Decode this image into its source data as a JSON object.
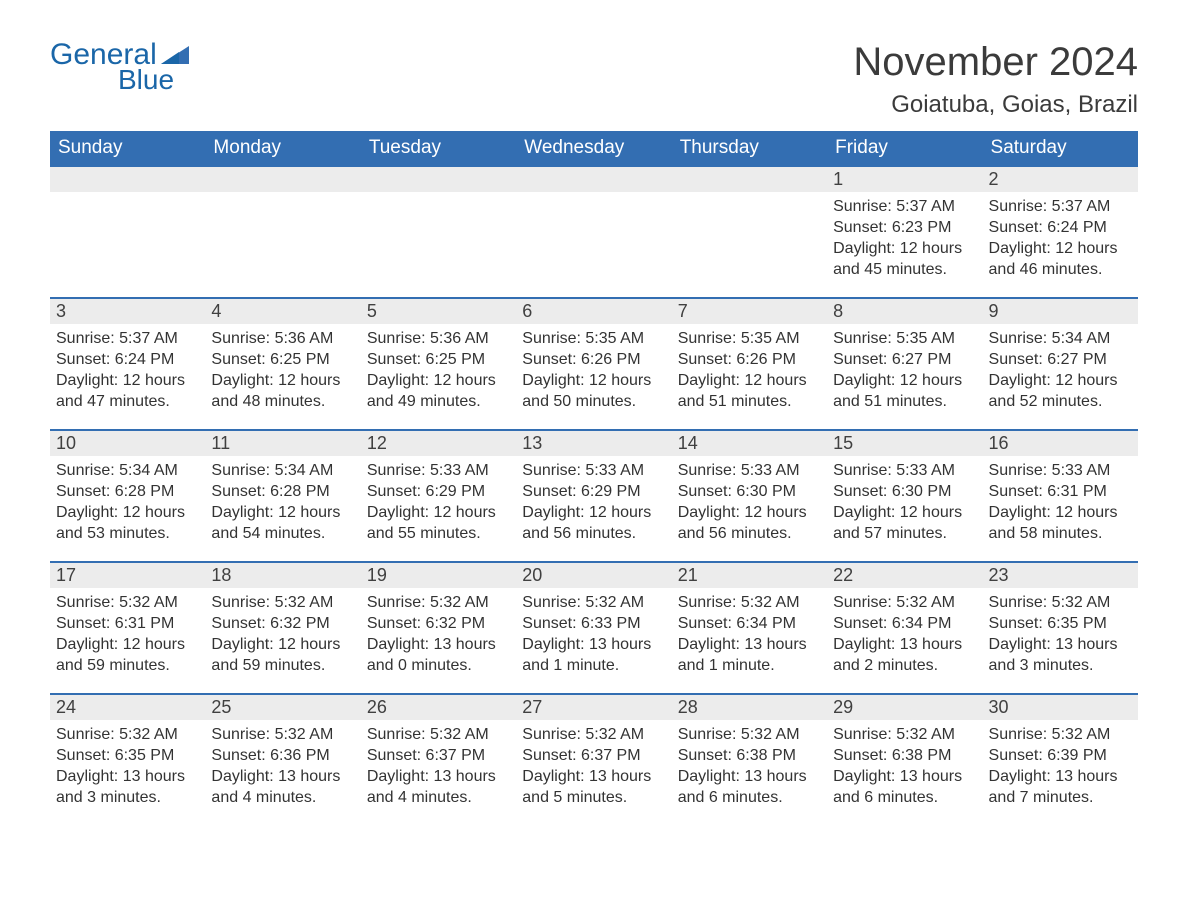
{
  "branding": {
    "logo_word1": "General",
    "logo_word2": "Blue",
    "logo_color": "#1a66a8",
    "logo_shape_color": "#336eb2"
  },
  "header": {
    "title": "November 2024",
    "location": "Goiatuba, Goias, Brazil",
    "title_color": "#3b3b3b",
    "title_fontsize": 40,
    "location_fontsize": 24
  },
  "calendar": {
    "type": "month-grid-calendar",
    "header_bg": "#336eb2",
    "header_text_color": "#ffffff",
    "row_separator_color": "#336eb2",
    "daynum_bg": "#ececec",
    "body_bg": "#ffffff",
    "text_color": "#333333",
    "font_family": "Arial",
    "day_headers": [
      "Sunday",
      "Monday",
      "Tuesday",
      "Wednesday",
      "Thursday",
      "Friday",
      "Saturday"
    ],
    "weeks": [
      [
        null,
        null,
        null,
        null,
        null,
        {
          "num": "1",
          "sunrise": "Sunrise: 5:37 AM",
          "sunset": "Sunset: 6:23 PM",
          "daylight": "Daylight: 12 hours and 45 minutes."
        },
        {
          "num": "2",
          "sunrise": "Sunrise: 5:37 AM",
          "sunset": "Sunset: 6:24 PM",
          "daylight": "Daylight: 12 hours and 46 minutes."
        }
      ],
      [
        {
          "num": "3",
          "sunrise": "Sunrise: 5:37 AM",
          "sunset": "Sunset: 6:24 PM",
          "daylight": "Daylight: 12 hours and 47 minutes."
        },
        {
          "num": "4",
          "sunrise": "Sunrise: 5:36 AM",
          "sunset": "Sunset: 6:25 PM",
          "daylight": "Daylight: 12 hours and 48 minutes."
        },
        {
          "num": "5",
          "sunrise": "Sunrise: 5:36 AM",
          "sunset": "Sunset: 6:25 PM",
          "daylight": "Daylight: 12 hours and 49 minutes."
        },
        {
          "num": "6",
          "sunrise": "Sunrise: 5:35 AM",
          "sunset": "Sunset: 6:26 PM",
          "daylight": "Daylight: 12 hours and 50 minutes."
        },
        {
          "num": "7",
          "sunrise": "Sunrise: 5:35 AM",
          "sunset": "Sunset: 6:26 PM",
          "daylight": "Daylight: 12 hours and 51 minutes."
        },
        {
          "num": "8",
          "sunrise": "Sunrise: 5:35 AM",
          "sunset": "Sunset: 6:27 PM",
          "daylight": "Daylight: 12 hours and 51 minutes."
        },
        {
          "num": "9",
          "sunrise": "Sunrise: 5:34 AM",
          "sunset": "Sunset: 6:27 PM",
          "daylight": "Daylight: 12 hours and 52 minutes."
        }
      ],
      [
        {
          "num": "10",
          "sunrise": "Sunrise: 5:34 AM",
          "sunset": "Sunset: 6:28 PM",
          "daylight": "Daylight: 12 hours and 53 minutes."
        },
        {
          "num": "11",
          "sunrise": "Sunrise: 5:34 AM",
          "sunset": "Sunset: 6:28 PM",
          "daylight": "Daylight: 12 hours and 54 minutes."
        },
        {
          "num": "12",
          "sunrise": "Sunrise: 5:33 AM",
          "sunset": "Sunset: 6:29 PM",
          "daylight": "Daylight: 12 hours and 55 minutes."
        },
        {
          "num": "13",
          "sunrise": "Sunrise: 5:33 AM",
          "sunset": "Sunset: 6:29 PM",
          "daylight": "Daylight: 12 hours and 56 minutes."
        },
        {
          "num": "14",
          "sunrise": "Sunrise: 5:33 AM",
          "sunset": "Sunset: 6:30 PM",
          "daylight": "Daylight: 12 hours and 56 minutes."
        },
        {
          "num": "15",
          "sunrise": "Sunrise: 5:33 AM",
          "sunset": "Sunset: 6:30 PM",
          "daylight": "Daylight: 12 hours and 57 minutes."
        },
        {
          "num": "16",
          "sunrise": "Sunrise: 5:33 AM",
          "sunset": "Sunset: 6:31 PM",
          "daylight": "Daylight: 12 hours and 58 minutes."
        }
      ],
      [
        {
          "num": "17",
          "sunrise": "Sunrise: 5:32 AM",
          "sunset": "Sunset: 6:31 PM",
          "daylight": "Daylight: 12 hours and 59 minutes."
        },
        {
          "num": "18",
          "sunrise": "Sunrise: 5:32 AM",
          "sunset": "Sunset: 6:32 PM",
          "daylight": "Daylight: 12 hours and 59 minutes."
        },
        {
          "num": "19",
          "sunrise": "Sunrise: 5:32 AM",
          "sunset": "Sunset: 6:32 PM",
          "daylight": "Daylight: 13 hours and 0 minutes."
        },
        {
          "num": "20",
          "sunrise": "Sunrise: 5:32 AM",
          "sunset": "Sunset: 6:33 PM",
          "daylight": "Daylight: 13 hours and 1 minute."
        },
        {
          "num": "21",
          "sunrise": "Sunrise: 5:32 AM",
          "sunset": "Sunset: 6:34 PM",
          "daylight": "Daylight: 13 hours and 1 minute."
        },
        {
          "num": "22",
          "sunrise": "Sunrise: 5:32 AM",
          "sunset": "Sunset: 6:34 PM",
          "daylight": "Daylight: 13 hours and 2 minutes."
        },
        {
          "num": "23",
          "sunrise": "Sunrise: 5:32 AM",
          "sunset": "Sunset: 6:35 PM",
          "daylight": "Daylight: 13 hours and 3 minutes."
        }
      ],
      [
        {
          "num": "24",
          "sunrise": "Sunrise: 5:32 AM",
          "sunset": "Sunset: 6:35 PM",
          "daylight": "Daylight: 13 hours and 3 minutes."
        },
        {
          "num": "25",
          "sunrise": "Sunrise: 5:32 AM",
          "sunset": "Sunset: 6:36 PM",
          "daylight": "Daylight: 13 hours and 4 minutes."
        },
        {
          "num": "26",
          "sunrise": "Sunrise: 5:32 AM",
          "sunset": "Sunset: 6:37 PM",
          "daylight": "Daylight: 13 hours and 4 minutes."
        },
        {
          "num": "27",
          "sunrise": "Sunrise: 5:32 AM",
          "sunset": "Sunset: 6:37 PM",
          "daylight": "Daylight: 13 hours and 5 minutes."
        },
        {
          "num": "28",
          "sunrise": "Sunrise: 5:32 AM",
          "sunset": "Sunset: 6:38 PM",
          "daylight": "Daylight: 13 hours and 6 minutes."
        },
        {
          "num": "29",
          "sunrise": "Sunrise: 5:32 AM",
          "sunset": "Sunset: 6:38 PM",
          "daylight": "Daylight: 13 hours and 6 minutes."
        },
        {
          "num": "30",
          "sunrise": "Sunrise: 5:32 AM",
          "sunset": "Sunset: 6:39 PM",
          "daylight": "Daylight: 13 hours and 7 minutes."
        }
      ]
    ]
  }
}
